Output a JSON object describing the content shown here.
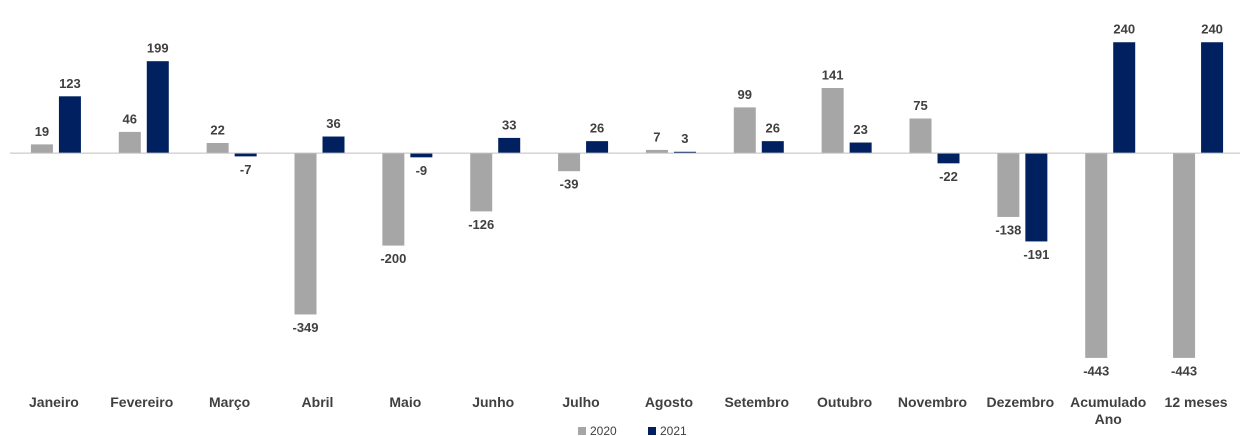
{
  "chart_data": {
    "type": "bar",
    "categories": [
      "Janeiro",
      "Fevereiro",
      "Março",
      "Abril",
      "Maio",
      "Junho",
      "Julho",
      "Agosto",
      "Setembro",
      "Outubro",
      "Novembro",
      "Dezembro",
      "Acumulado Ano",
      "12 meses"
    ],
    "series": [
      {
        "name": "2020",
        "color": "#a6a6a6",
        "values": [
          19,
          46,
          22,
          -349,
          -200,
          -126,
          -39,
          7,
          99,
          141,
          75,
          -138,
          -443,
          -443
        ]
      },
      {
        "name": "2021",
        "color": "#002060",
        "values": [
          123,
          199,
          -7,
          36,
          -9,
          33,
          26,
          3,
          26,
          23,
          -22,
          -191,
          240,
          240
        ]
      }
    ],
    "ylim": [
      -480,
      260
    ],
    "grid": false,
    "legend": "bottom"
  }
}
